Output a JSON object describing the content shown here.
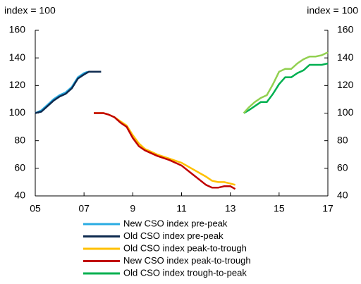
{
  "chart_data": {
    "type": "line",
    "y_label": "index = 100",
    "y2_label": "index = 100",
    "xlim": [
      5,
      17
    ],
    "xticks": [
      {
        "value": 5,
        "label": "05"
      },
      {
        "value": 7,
        "label": "07"
      },
      9,
      11,
      13,
      15,
      17
    ],
    "ylim": [
      40,
      160
    ],
    "yticks": [
      40,
      60,
      80,
      100,
      120,
      140,
      160
    ],
    "y2lim": [
      40,
      160
    ],
    "y2ticks": [
      40,
      60,
      80,
      100,
      120,
      140,
      160
    ],
    "series": [
      {
        "name": "New CSO index pre-peak",
        "color": "#29abe2",
        "x": [
          5.0,
          5.25,
          5.5,
          5.75,
          6.0,
          6.25,
          6.5,
          6.75,
          7.0,
          7.15
        ],
        "values": [
          100,
          102,
          106,
          110,
          113,
          115,
          119,
          126,
          129,
          130
        ]
      },
      {
        "name": "Old CSO index pre-peak",
        "color": "#0d2a4f",
        "x": [
          5.0,
          5.25,
          5.5,
          5.75,
          6.0,
          6.25,
          6.5,
          6.75,
          7.0,
          7.2,
          7.5,
          7.7
        ],
        "values": [
          100,
          101,
          105,
          109,
          112,
          114,
          118,
          125,
          128,
          130,
          130,
          130
        ]
      },
      {
        "name": "Old CSO index peak-to-trough",
        "color": "#ffc000",
        "x": [
          7.4,
          7.8,
          8.0,
          8.25,
          8.5,
          8.75,
          9.0,
          9.25,
          9.5,
          9.75,
          10.0,
          10.5,
          11.0,
          11.5,
          12.0,
          12.25,
          12.5,
          12.75,
          13.0,
          13.2
        ],
        "values": [
          100,
          100,
          99,
          97,
          94,
          91,
          84,
          78,
          74,
          72,
          70,
          67,
          64,
          59,
          54,
          51,
          50,
          50,
          49,
          48
        ]
      },
      {
        "name": "New CSO index peak-to-trough",
        "color": "#c00000",
        "x": [
          7.4,
          7.8,
          8.0,
          8.25,
          8.5,
          8.75,
          9.0,
          9.25,
          9.5,
          9.75,
          10.0,
          10.5,
          11.0,
          11.5,
          12.0,
          12.25,
          12.5,
          12.75,
          13.0,
          13.2
        ],
        "values": [
          100,
          100,
          99,
          97,
          93,
          90,
          82,
          76,
          73,
          71,
          69,
          66,
          62,
          55,
          48,
          46,
          46,
          47,
          47,
          45
        ]
      },
      {
        "name": "Old CSO index trough-to-peak",
        "color": "#00b050",
        "x": [
          13.55,
          13.75,
          14.0,
          14.25,
          14.5,
          14.75,
          15.0,
          15.25,
          15.5,
          15.75,
          16.0,
          16.25,
          16.5,
          16.75,
          17.0
        ],
        "values": [
          100,
          102,
          105,
          108,
          108,
          114,
          121,
          126,
          126,
          129,
          131,
          135,
          135,
          135,
          136
        ]
      },
      {
        "color": "#92d050",
        "x": [
          13.55,
          13.75,
          14.0,
          14.25,
          14.5,
          14.75,
          15.0,
          15.25,
          15.5,
          15.75,
          16.0,
          16.25,
          16.5,
          16.75,
          17.0
        ],
        "values": [
          100,
          104,
          108,
          111,
          113,
          121,
          130,
          132,
          132,
          136,
          139,
          141,
          141,
          142,
          144
        ]
      }
    ]
  }
}
